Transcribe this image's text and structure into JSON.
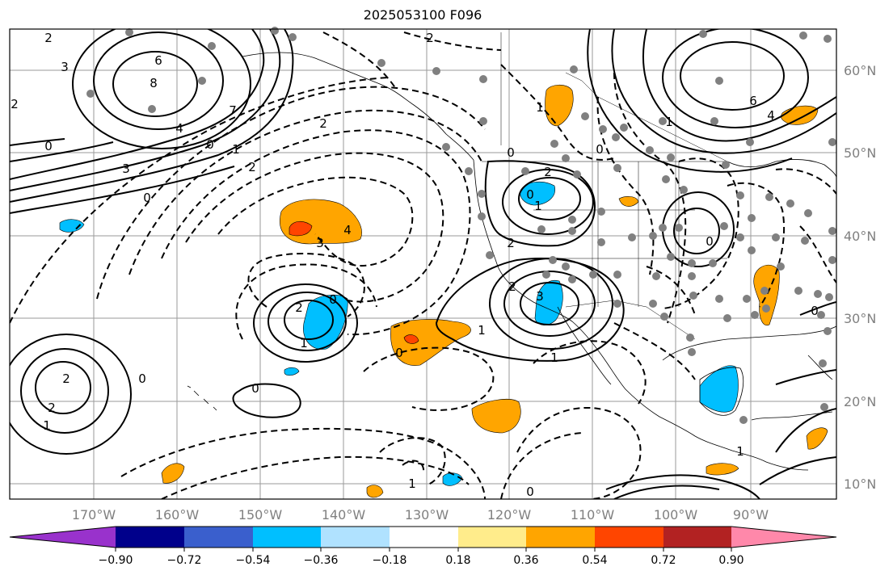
{
  "title": "2025053100 F096",
  "map": {
    "lon_ticks": [
      "170°W",
      "160°W",
      "150°W",
      "140°W",
      "130°W",
      "120°W",
      "110°W",
      "100°W",
      "90°W"
    ],
    "lat_ticks": [
      "60°N",
      "50°N",
      "40°N",
      "30°N",
      "20°N",
      "10°N"
    ]
  },
  "colorbar": {
    "colors": [
      "#9932CC",
      "#00008B",
      "#3A5FCD",
      "#00BFFF",
      "#B0E2FF",
      "#FFFFFF",
      "#FFEC8B",
      "#FFA500",
      "#FF4500",
      "#B22222",
      "#FF88AA"
    ],
    "tick_labels": [
      "−0.90",
      "−0.72",
      "−0.54",
      "−0.36",
      "−0.18",
      "0.18",
      "0.36",
      "0.54",
      "0.72",
      "0.90"
    ]
  },
  "contour_labels": [
    "2",
    "6",
    "8",
    "3",
    "7",
    "2",
    "4",
    "0",
    "1",
    "2",
    "3",
    "0",
    "2",
    "0",
    "3",
    "4",
    "2",
    "0",
    "1",
    "0",
    "2",
    "2",
    "1",
    "0",
    "1",
    "2",
    "1",
    "0",
    "2",
    "0",
    "1",
    "2",
    "0",
    "0",
    "2",
    "3",
    "1",
    "1",
    "0",
    "6",
    "4",
    "1",
    "0",
    "1",
    "0"
  ]
}
